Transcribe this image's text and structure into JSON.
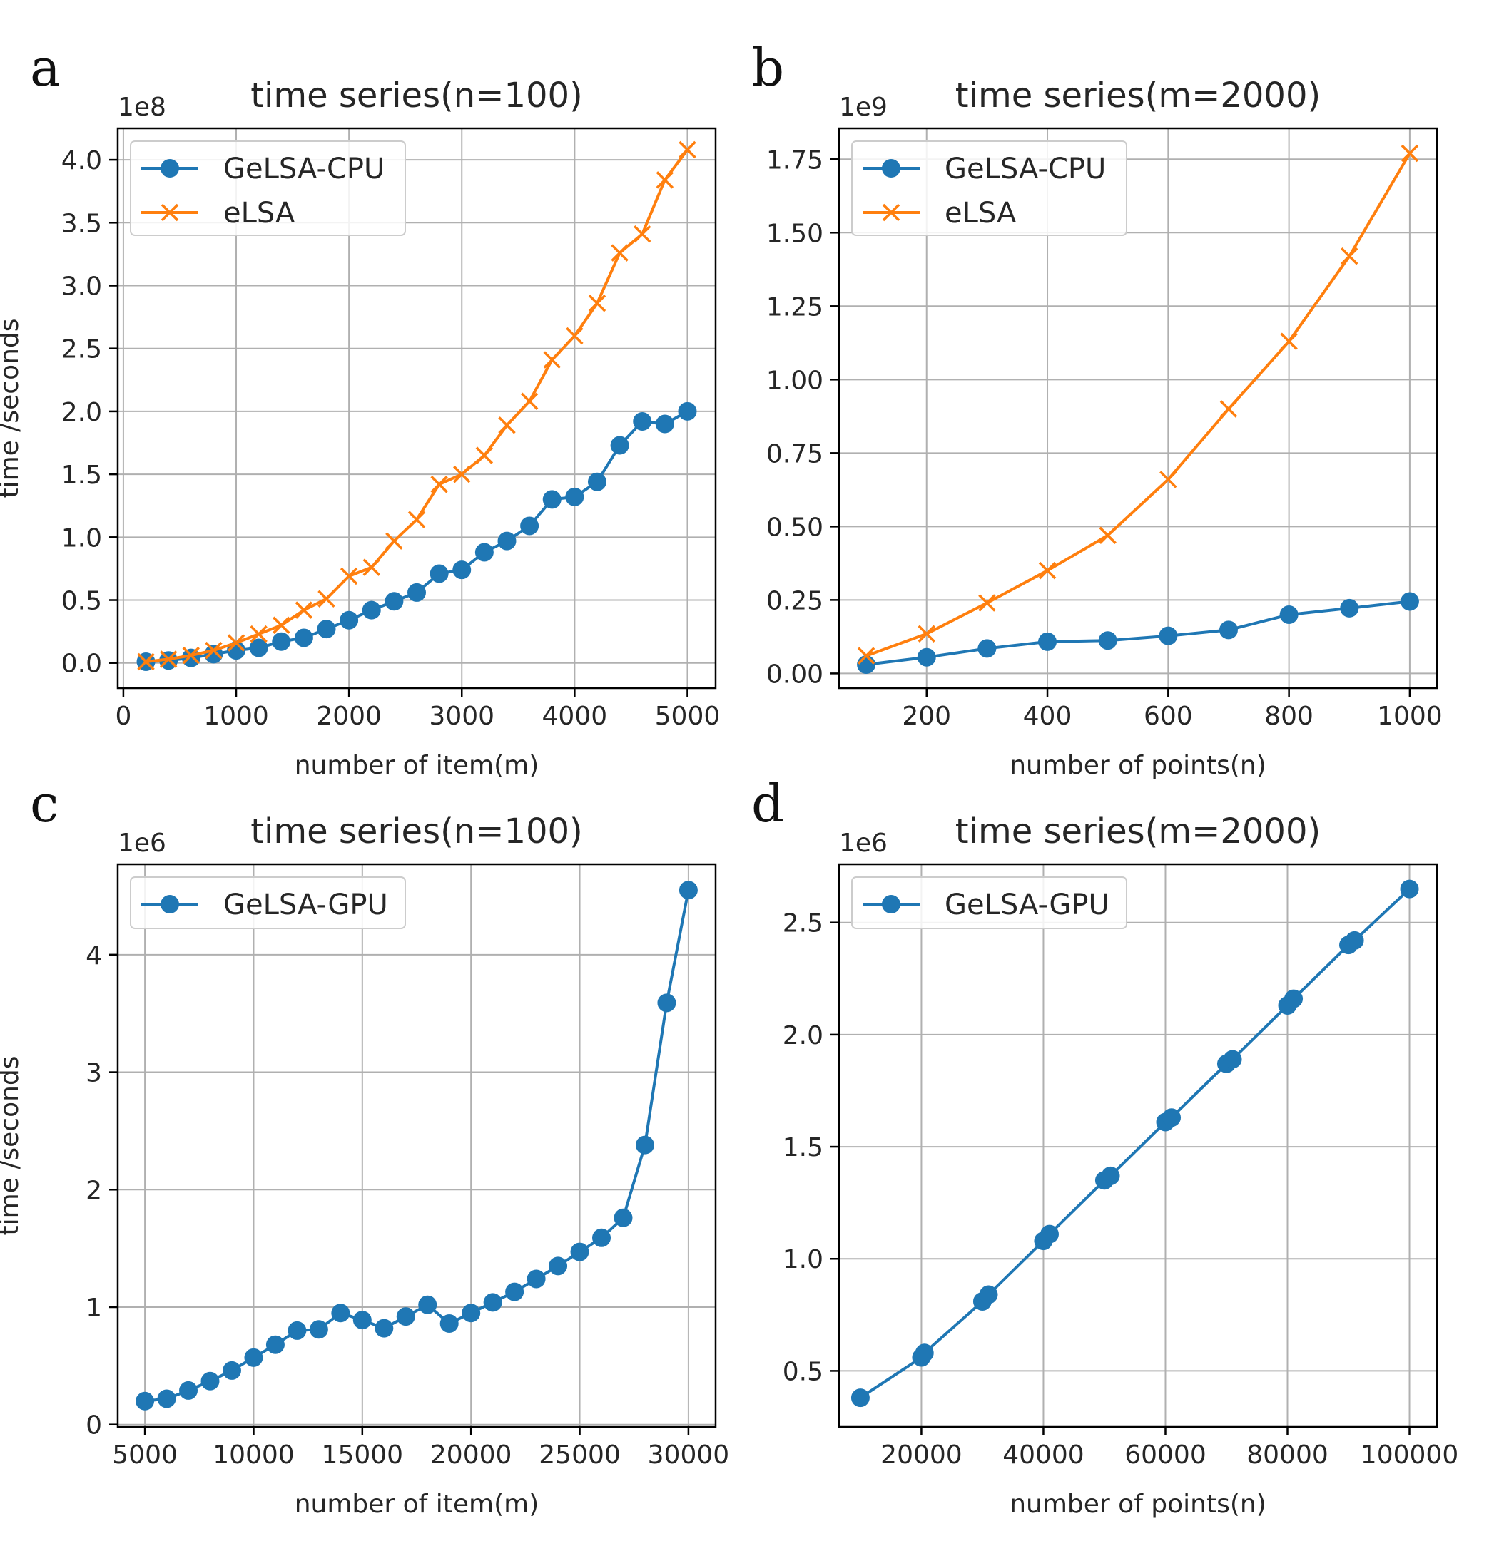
{
  "colors": {
    "cpu": "#1f77b4",
    "elsa": "#ff7f0e",
    "grid": "#b0b0b0",
    "axis": "#000000"
  },
  "chart_data": [
    {
      "panel_letter": "a",
      "type": "line",
      "title": "time series(n=100)",
      "xlabel": "number of item(m)",
      "ylabel": "time /seconds",
      "offset_label": "1e8",
      "xlim": [
        -50,
        5250
      ],
      "ylim": [
        -0.2,
        4.25
      ],
      "x_ticks": [
        0,
        1000,
        2000,
        3000,
        4000,
        5000
      ],
      "x_tick_labels": [
        "0",
        "1000",
        "2000",
        "3000",
        "4000",
        "5000"
      ],
      "y_ticks": [
        0,
        0.5,
        1.0,
        1.5,
        2.0,
        2.5,
        3.0,
        3.5,
        4.0
      ],
      "y_tick_labels": [
        "0.0",
        "0.5",
        "1.0",
        "1.5",
        "2.0",
        "2.5",
        "3.0",
        "3.5",
        "4.0"
      ],
      "grid": true,
      "legend_position": "top-left",
      "series": [
        {
          "name": "GeLSA-CPU",
          "color": "#1f77b4",
          "marker": "circle",
          "x": [
            200,
            400,
            600,
            800,
            1000,
            1200,
            1400,
            1600,
            1800,
            2000,
            2200,
            2400,
            2600,
            2800,
            3000,
            3200,
            3400,
            3600,
            3800,
            4000,
            4200,
            4400,
            4600,
            4800,
            5000
          ],
          "y": [
            0.01,
            0.02,
            0.04,
            0.07,
            0.1,
            0.12,
            0.17,
            0.2,
            0.27,
            0.34,
            0.42,
            0.49,
            0.56,
            0.71,
            0.74,
            0.88,
            0.97,
            1.09,
            1.3,
            1.32,
            1.44,
            1.73,
            1.92,
            1.9,
            2.0
          ]
        },
        {
          "name": "eLSA",
          "color": "#ff7f0e",
          "marker": "x",
          "x": [
            200,
            400,
            600,
            800,
            1000,
            1200,
            1400,
            1600,
            1800,
            2000,
            2200,
            2400,
            2600,
            2800,
            3000,
            3200,
            3400,
            3600,
            3800,
            4000,
            4200,
            4400,
            4600,
            4800,
            5000
          ],
          "y": [
            0.01,
            0.03,
            0.06,
            0.1,
            0.16,
            0.23,
            0.3,
            0.42,
            0.51,
            0.69,
            0.76,
            0.97,
            1.14,
            1.42,
            1.5,
            1.65,
            1.89,
            2.08,
            2.41,
            2.6,
            2.86,
            3.26,
            3.41,
            3.84,
            4.08
          ]
        }
      ]
    },
    {
      "panel_letter": "b",
      "type": "line",
      "title": "time series(m=2000)",
      "xlabel": "number of points(n)",
      "ylabel": "",
      "offset_label": "1e9",
      "xlim": [
        55,
        1045
      ],
      "ylim": [
        -0.05,
        1.855
      ],
      "x_ticks": [
        200,
        400,
        600,
        800,
        1000
      ],
      "x_tick_labels": [
        "200",
        "400",
        "600",
        "800",
        "1000"
      ],
      "y_ticks": [
        0,
        0.25,
        0.5,
        0.75,
        1.0,
        1.25,
        1.5,
        1.75
      ],
      "y_tick_labels": [
        "0.00",
        "0.25",
        "0.50",
        "0.75",
        "1.00",
        "1.25",
        "1.50",
        "1.75"
      ],
      "grid": true,
      "legend_position": "top-left",
      "series": [
        {
          "name": "GeLSA-CPU",
          "color": "#1f77b4",
          "marker": "circle",
          "x": [
            100,
            200,
            300,
            400,
            500,
            600,
            700,
            800,
            900,
            1000
          ],
          "y": [
            0.03,
            0.055,
            0.085,
            0.108,
            0.112,
            0.128,
            0.148,
            0.2,
            0.222,
            0.245
          ]
        },
        {
          "name": "eLSA",
          "color": "#ff7f0e",
          "marker": "x",
          "x": [
            100,
            200,
            300,
            400,
            500,
            600,
            700,
            800,
            900,
            1000
          ],
          "y": [
            0.06,
            0.135,
            0.24,
            0.35,
            0.47,
            0.66,
            0.9,
            1.13,
            1.42,
            1.77
          ]
        }
      ]
    },
    {
      "panel_letter": "c",
      "type": "line",
      "title": "time series(n=100)",
      "xlabel": "number of item(m)",
      "ylabel": "time /seconds",
      "offset_label": "1e6",
      "xlim": [
        3750,
        31250
      ],
      "ylim": [
        -0.02,
        4.77
      ],
      "x_ticks": [
        5000,
        10000,
        15000,
        20000,
        25000,
        30000
      ],
      "x_tick_labels": [
        "5000",
        "10000",
        "15000",
        "20000",
        "25000",
        "30000"
      ],
      "y_ticks": [
        0,
        1,
        2,
        3,
        4
      ],
      "y_tick_labels": [
        "0",
        "1",
        "2",
        "3",
        "4"
      ],
      "grid": true,
      "legend_position": "top-left",
      "series": [
        {
          "name": "GeLSA-GPU",
          "color": "#1f77b4",
          "marker": "circle",
          "x": [
            5000,
            6000,
            7000,
            8000,
            9000,
            10000,
            11000,
            12000,
            13000,
            14000,
            15000,
            16000,
            17000,
            18000,
            19000,
            20000,
            21000,
            22000,
            23000,
            24000,
            25000,
            26000,
            27000,
            28000,
            29000,
            30000
          ],
          "y": [
            0.2,
            0.22,
            0.29,
            0.37,
            0.46,
            0.57,
            0.68,
            0.8,
            0.81,
            0.95,
            0.89,
            0.82,
            0.92,
            1.02,
            0.86,
            0.95,
            1.04,
            1.13,
            1.24,
            1.35,
            1.47,
            1.59,
            1.76,
            2.38,
            3.59,
            4.55
          ]
        }
      ]
    },
    {
      "panel_letter": "d",
      "type": "line",
      "title": "time series(m=2000)",
      "xlabel": "number of points(n)",
      "ylabel": "",
      "offset_label": "1e6",
      "xlim": [
        6500,
        104500
      ],
      "ylim": [
        0.25,
        2.76
      ],
      "x_ticks": [
        20000,
        40000,
        60000,
        80000,
        100000
      ],
      "x_tick_labels": [
        "20000",
        "40000",
        "60000",
        "80000",
        "100000"
      ],
      "y_ticks": [
        0.5,
        1.0,
        1.5,
        2.0,
        2.5
      ],
      "y_tick_labels": [
        "0.5",
        "1.0",
        "1.5",
        "2.0",
        "2.5"
      ],
      "grid": true,
      "legend_position": "top-left",
      "series": [
        {
          "name": "GeLSA-GPU",
          "color": "#1f77b4",
          "marker": "circle",
          "x": [
            10000,
            20000,
            20500,
            30000,
            31000,
            40000,
            41000,
            50000,
            51000,
            60000,
            61000,
            70000,
            71000,
            80000,
            81000,
            90000,
            91000,
            100000
          ],
          "y": [
            0.38,
            0.56,
            0.58,
            0.81,
            0.84,
            1.08,
            1.11,
            1.35,
            1.37,
            1.61,
            1.63,
            1.87,
            1.89,
            2.13,
            2.16,
            2.4,
            2.42,
            2.65
          ]
        }
      ]
    }
  ]
}
